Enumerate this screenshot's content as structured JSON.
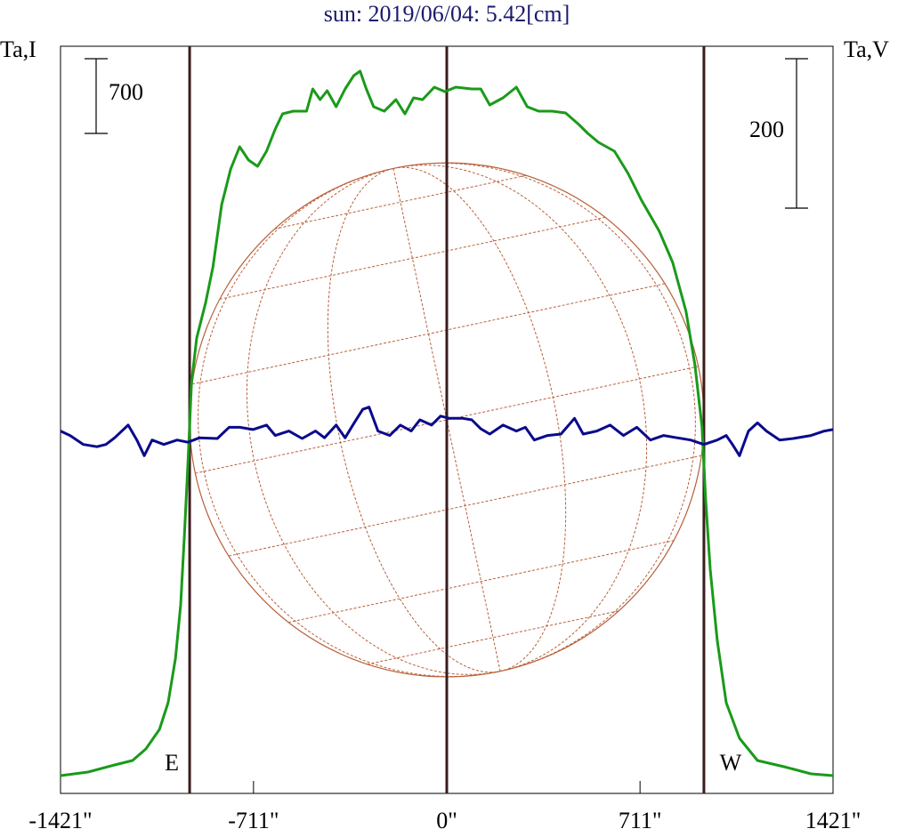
{
  "chart_data": {
    "type": "line",
    "title": "sun: 2019/06/04: 5.42[cm]",
    "y_label": "Ta,I",
    "y2_label": "Ta,V",
    "xlim": [
      -1421,
      1421
    ],
    "xticks": [
      {
        "value": -1421,
        "label": "-1421\""
      },
      {
        "value": -711,
        "label": "-711\""
      },
      {
        "value": 0,
        "label": "0\""
      },
      {
        "value": 711,
        "label": "711\""
      },
      {
        "value": 1421,
        "label": "1421\""
      }
    ],
    "ylim": [
      0,
      7000
    ],
    "y2lim": [
      -500,
      500
    ],
    "center_line": 0,
    "disk_radius": 946,
    "limb_markers": [
      {
        "label": "E",
        "x": -946
      },
      {
        "label": "W",
        "x": 946
      }
    ],
    "scale_bars": [
      {
        "value": 700,
        "axis": "y"
      },
      {
        "value": 200,
        "axis": "y2"
      }
    ],
    "series": [
      {
        "color": "#1a9a1a",
        "x": [
          -1421,
          -1320,
          -1222,
          -1156,
          -1107,
          -1057,
          -1025,
          -998,
          -979,
          -965,
          -952,
          -939,
          -920,
          -887,
          -860,
          -828,
          -795,
          -762,
          -729,
          -696,
          -663,
          -631,
          -604,
          -565,
          -516,
          -493,
          -466,
          -440,
          -407,
          -374,
          -342,
          -319,
          -296,
          -269,
          -230,
          -187,
          -154,
          -122,
          -89,
          -46,
          -7,
          33,
          92,
          125,
          158,
          207,
          256,
          296,
          338,
          388,
          437,
          486,
          519,
          558,
          617,
          667,
          716,
          782,
          831,
          880,
          913,
          939,
          952,
          969,
          995,
          1028,
          1077,
          1143,
          1241,
          1340,
          1421
        ],
        "values": [
          167,
          200,
          267,
          308,
          417,
          600,
          850,
          1267,
          1767,
          2433,
          3100,
          3850,
          4267,
          4600,
          4933,
          5517,
          5850,
          6058,
          5933,
          5875,
          6017,
          6225,
          6367,
          6392,
          6392,
          6600,
          6500,
          6583,
          6433,
          6600,
          6725,
          6767,
          6600,
          6433,
          6392,
          6500,
          6367,
          6517,
          6500,
          6617,
          6575,
          6617,
          6600,
          6600,
          6450,
          6517,
          6617,
          6433,
          6392,
          6392,
          6375,
          6267,
          6183,
          6100,
          6017,
          5808,
          5558,
          5267,
          4975,
          4517,
          4017,
          3433,
          2767,
          2100,
          1433,
          850,
          517,
          308,
          250,
          183,
          167
        ]
      },
      {
        "color": "#0a0a8c",
        "axis": "y2",
        "x": [
          -1421,
          -1386,
          -1337,
          -1287,
          -1254,
          -1222,
          -1172,
          -1140,
          -1113,
          -1084,
          -1041,
          -992,
          -952,
          -910,
          -844,
          -801,
          -762,
          -713,
          -663,
          -631,
          -581,
          -532,
          -483,
          -450,
          -407,
          -374,
          -342,
          -309,
          -286,
          -253,
          -210,
          -171,
          -131,
          -99,
          -56,
          -23,
          10,
          59,
          92,
          125,
          158,
          207,
          256,
          289,
          322,
          371,
          420,
          470,
          502,
          552,
          601,
          650,
          699,
          749,
          798,
          847,
          897,
          946,
          995,
          1028,
          1051,
          1077,
          1110,
          1143,
          1176,
          1225,
          1274,
          1340,
          1389,
          1421
        ],
        "values": [
          -15,
          -21,
          -33,
          -36,
          -33,
          -24,
          -7,
          -27,
          -48,
          -27,
          -33,
          -27,
          -30,
          -24,
          -25,
          -10,
          -10,
          -13,
          -7,
          -21,
          -15,
          -25,
          -15,
          -24,
          -7,
          -24,
          -5,
          14,
          17,
          -15,
          -21,
          -7,
          -15,
          0,
          -7,
          5,
          2,
          2,
          0,
          -12,
          -19,
          -7,
          -15,
          -10,
          -27,
          -21,
          -19,
          2,
          -19,
          -15,
          -7,
          -21,
          -10,
          -27,
          -21,
          -24,
          -27,
          -33,
          -27,
          -21,
          -33,
          -48,
          -15,
          -4,
          -15,
          -27,
          -25,
          -21,
          -15,
          -13
        ]
      }
    ]
  }
}
